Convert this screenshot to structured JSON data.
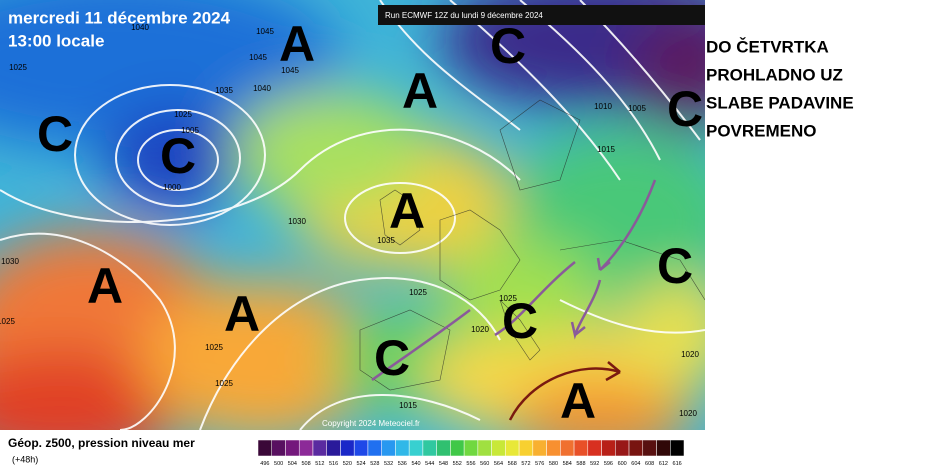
{
  "header": {
    "date": "mercredi 11 décembre 2024",
    "time": "13:00 locale",
    "run": "Run ECMWF 12Z du lundi 9 décembre 2024"
  },
  "copyright": "Copyright 2024 Meteociel.fr",
  "systems": [
    "A",
    "A",
    "C",
    "C",
    "C",
    "C",
    "A",
    "C",
    "A",
    "A",
    "C",
    "C",
    "A"
  ],
  "isobars": [
    "1040",
    "1045",
    "1045",
    "1045",
    "1035",
    "1040",
    "1025",
    "1025",
    "1005",
    "1000",
    "1030",
    "1035",
    "1030",
    "1025",
    "1025",
    "1025",
    "1025",
    "1025",
    "1020",
    "1015",
    "1010",
    "1005",
    "1015",
    "1020",
    "1020"
  ],
  "note": [
    "DO ČETVRTKA",
    "PROHLADNO UZ",
    "SLABE PADAVINE",
    "POVREMENO"
  ],
  "legend": {
    "title": "Géop. z500, pression niveau mer",
    "lead": "(+48h)",
    "ticks": [
      496,
      500,
      504,
      508,
      512,
      516,
      520,
      524,
      528,
      532,
      536,
      540,
      544,
      548,
      552,
      556,
      560,
      564,
      568,
      572,
      576,
      580,
      584,
      588,
      592,
      596,
      600,
      604,
      608,
      612,
      616
    ],
    "colors": [
      "#3a0838",
      "#581060",
      "#74187c",
      "#8c2a98",
      "#5a2aa0",
      "#2a1a9a",
      "#1a28c8",
      "#1e48e8",
      "#2070f0",
      "#2898f0",
      "#30b8e8",
      "#38d0d0",
      "#30c8a0",
      "#30c070",
      "#40c848",
      "#70d840",
      "#a0e040",
      "#c8e838",
      "#e8e838",
      "#f8d030",
      "#f8b030",
      "#f89030",
      "#f07030",
      "#e85028",
      "#d83020",
      "#b82018",
      "#981818",
      "#781410",
      "#581010",
      "#300808",
      "#000000"
    ]
  }
}
